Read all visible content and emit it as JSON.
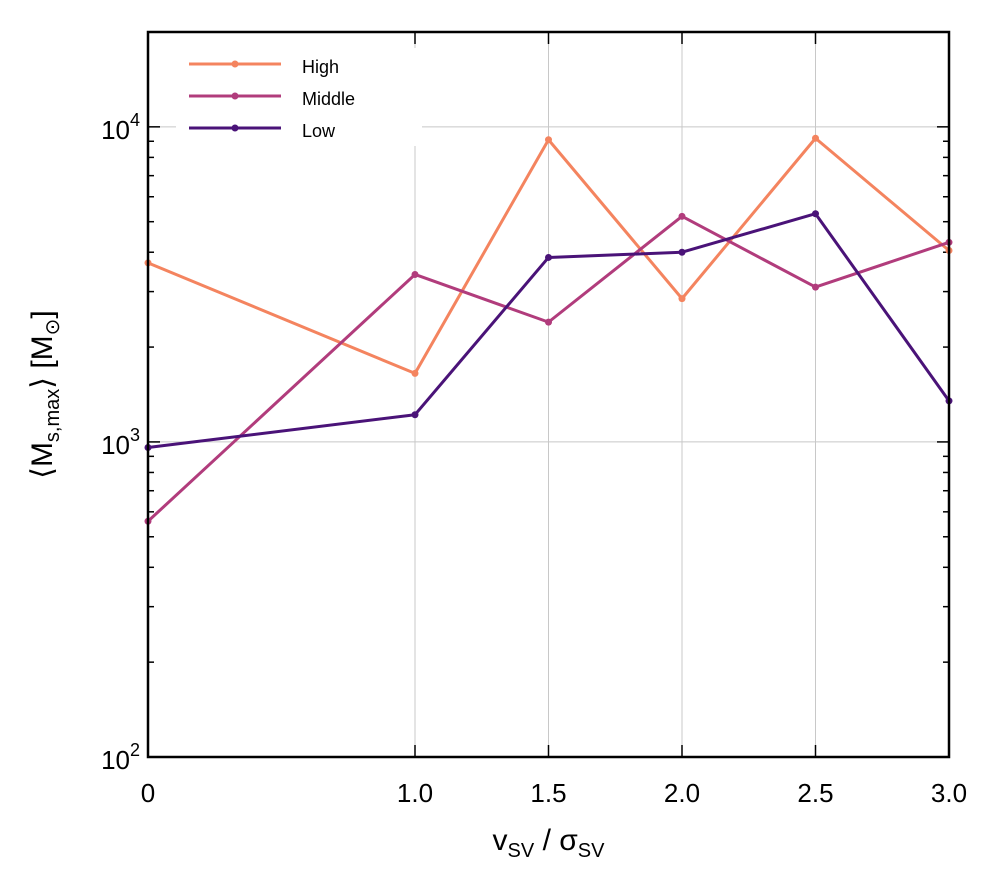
{
  "chart_data": {
    "type": "line",
    "x": [
      0,
      1.0,
      1.5,
      2.0,
      2.5,
      3.0
    ],
    "x_tick_labels": [
      "0",
      "1.0",
      "1.5",
      "2.0",
      "2.5",
      "3.0"
    ],
    "xlabel": "v_SV / σ_SV",
    "xlabel_parts": {
      "v": "v",
      "v_sub": "SV",
      "sep": " / ",
      "sigma": "σ",
      "sigma_sub": "SV"
    },
    "ylabel": "⟨M_s,max⟩ [M_⊙]",
    "ylabel_parts": {
      "left": "⟨M",
      "sub": "s,max",
      "right": "⟩ [M",
      "sun_sub": "⊙",
      "close": "]"
    },
    "yscale": "log",
    "ylim": [
      100,
      20000
    ],
    "y_ticks": [
      {
        "value": 100,
        "base": "10",
        "exp": "2"
      },
      {
        "value": 1000,
        "base": "10",
        "exp": "3"
      },
      {
        "value": 10000,
        "base": "10",
        "exp": "4"
      }
    ],
    "grid": true,
    "legend_position": "top-left",
    "series": [
      {
        "name": "High",
        "color": "#f4845f",
        "values": [
          3700,
          1650,
          9100,
          2850,
          9200,
          4050
        ]
      },
      {
        "name": "Middle",
        "color": "#b13c7c",
        "values": [
          560,
          3400,
          2400,
          5200,
          3100,
          4300
        ]
      },
      {
        "name": "Low",
        "color": "#4a1378",
        "values": [
          960,
          1220,
          3850,
          4000,
          5300,
          1350
        ]
      }
    ]
  }
}
